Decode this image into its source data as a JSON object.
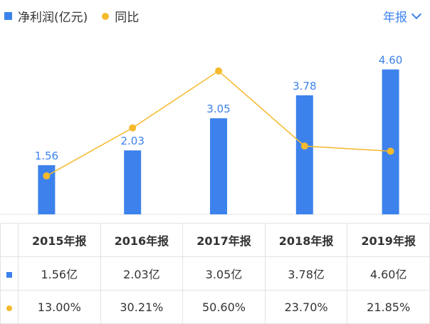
{
  "legend": {
    "bar_label": "净利润(亿元)",
    "line_label": "同比"
  },
  "period_selector": {
    "label": "年报"
  },
  "colors": {
    "bar": "#3d82ec",
    "line": "#f5b92c",
    "bar_label_text": "#3d82ec",
    "pct_text": "#e64545"
  },
  "chart_data": {
    "type": "bar",
    "categories": [
      "2015年报",
      "2016年报",
      "2017年报",
      "2018年报",
      "2019年报"
    ],
    "series": [
      {
        "name": "净利润(亿元)",
        "type": "bar",
        "values": [
          1.56,
          2.03,
          3.05,
          3.78,
          4.6
        ],
        "value_labels": [
          "1.56",
          "2.03",
          "3.05",
          "3.78",
          "4.60"
        ]
      },
      {
        "name": "同比",
        "type": "line",
        "values": [
          13.0,
          30.21,
          50.6,
          23.7,
          21.85
        ]
      }
    ]
  },
  "table": {
    "headers": [
      "2015年报",
      "2016年报",
      "2017年报",
      "2018年报",
      "2019年报"
    ],
    "profit_row": [
      "1.56亿",
      "2.03亿",
      "3.05亿",
      "3.78亿",
      "4.60亿"
    ],
    "yoy_row": [
      "13.00%",
      "30.21%",
      "50.60%",
      "23.70%",
      "21.85%"
    ]
  }
}
